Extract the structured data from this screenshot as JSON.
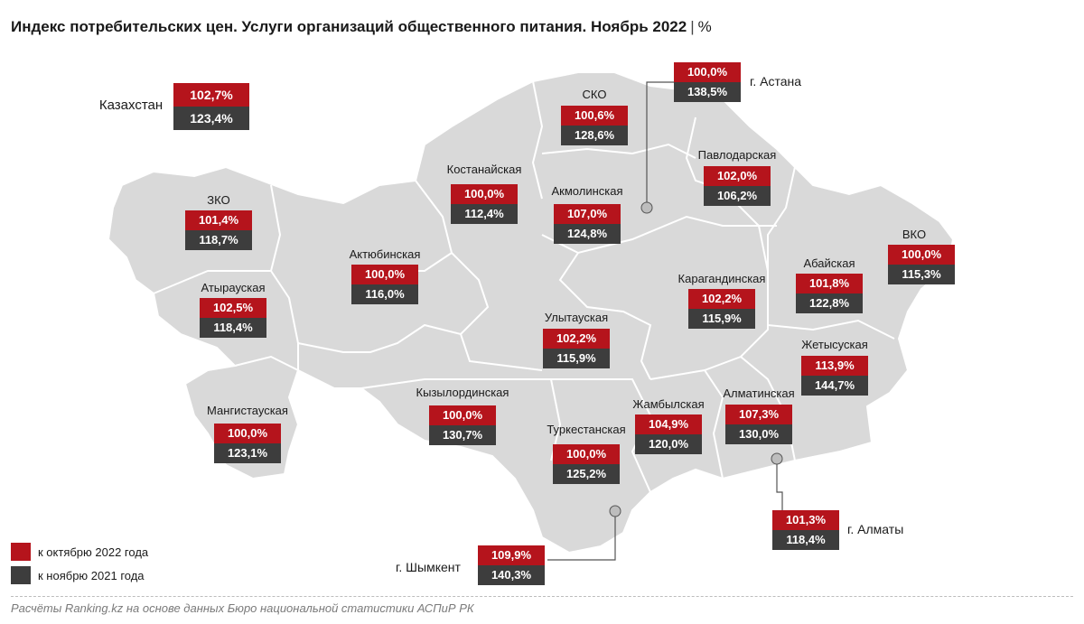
{
  "header": {
    "title": "Индекс потребительских цен. Услуги организаций общественного питания. Ноябрь 2022",
    "separator": "|",
    "unit": "%"
  },
  "colors": {
    "vs_oct": "#b5141c",
    "vs_nov": "#3d3d3d",
    "map_fill": "#d9d9d9",
    "map_border": "#ffffff"
  },
  "kazakhstan": {
    "name": "Казахстан",
    "vs_oct": "102,7%",
    "vs_nov": "123,4%"
  },
  "regions": [
    {
      "name": "ЗКО",
      "vs_oct": "101,4%",
      "vs_nov": "118,7%"
    },
    {
      "name": "Атырауская",
      "vs_oct": "102,5%",
      "vs_nov": "118,4%"
    },
    {
      "name": "Мангистауская",
      "vs_oct": "100,0%",
      "vs_nov": "123,1%"
    },
    {
      "name": "Актюбинская",
      "vs_oct": "100,0%",
      "vs_nov": "116,0%"
    },
    {
      "name": "Костанайская",
      "vs_oct": "100,0%",
      "vs_nov": "112,4%"
    },
    {
      "name": "СКО",
      "vs_oct": "100,6%",
      "vs_nov": "128,6%"
    },
    {
      "name": "Акмолинская",
      "vs_oct": "107,0%",
      "vs_nov": "124,8%"
    },
    {
      "name": "Павлодарская",
      "vs_oct": "102,0%",
      "vs_nov": "106,2%"
    },
    {
      "name": "ВКО",
      "vs_oct": "100,0%",
      "vs_nov": "115,3%"
    },
    {
      "name": "Абайская",
      "vs_oct": "101,8%",
      "vs_nov": "122,8%"
    },
    {
      "name": "Карагандинская",
      "vs_oct": "102,2%",
      "vs_nov": "115,9%"
    },
    {
      "name": "Улытауская",
      "vs_oct": "102,2%",
      "vs_nov": "115,9%"
    },
    {
      "name": "Кызылординская",
      "vs_oct": "100,0%",
      "vs_nov": "130,7%"
    },
    {
      "name": "Туркестанская",
      "vs_oct": "100,0%",
      "vs_nov": "125,2%"
    },
    {
      "name": "Жамбылская",
      "vs_oct": "104,9%",
      "vs_nov": "120,0%"
    },
    {
      "name": "Алматинская",
      "vs_oct": "107,3%",
      "vs_nov": "130,0%"
    },
    {
      "name": "Жетысуская",
      "vs_oct": "113,9%",
      "vs_nov": "144,7%"
    }
  ],
  "cities": [
    {
      "name": "г. Астана",
      "vs_oct": "100,0%",
      "vs_nov": "138,5%"
    },
    {
      "name": "г. Алматы",
      "vs_oct": "101,3%",
      "vs_nov": "118,4%"
    },
    {
      "name": "г. Шымкент",
      "vs_oct": "109,9%",
      "vs_nov": "140,3%"
    }
  ],
  "legend": [
    {
      "label": "к октябрю 2022 года",
      "color": "#b5141c"
    },
    {
      "label": "к ноябрю 2021 года",
      "color": "#3d3d3d"
    }
  ],
  "source": "Расчёты Ranking.kz на основе данных Бюро национальной статистики АСПиР РК"
}
